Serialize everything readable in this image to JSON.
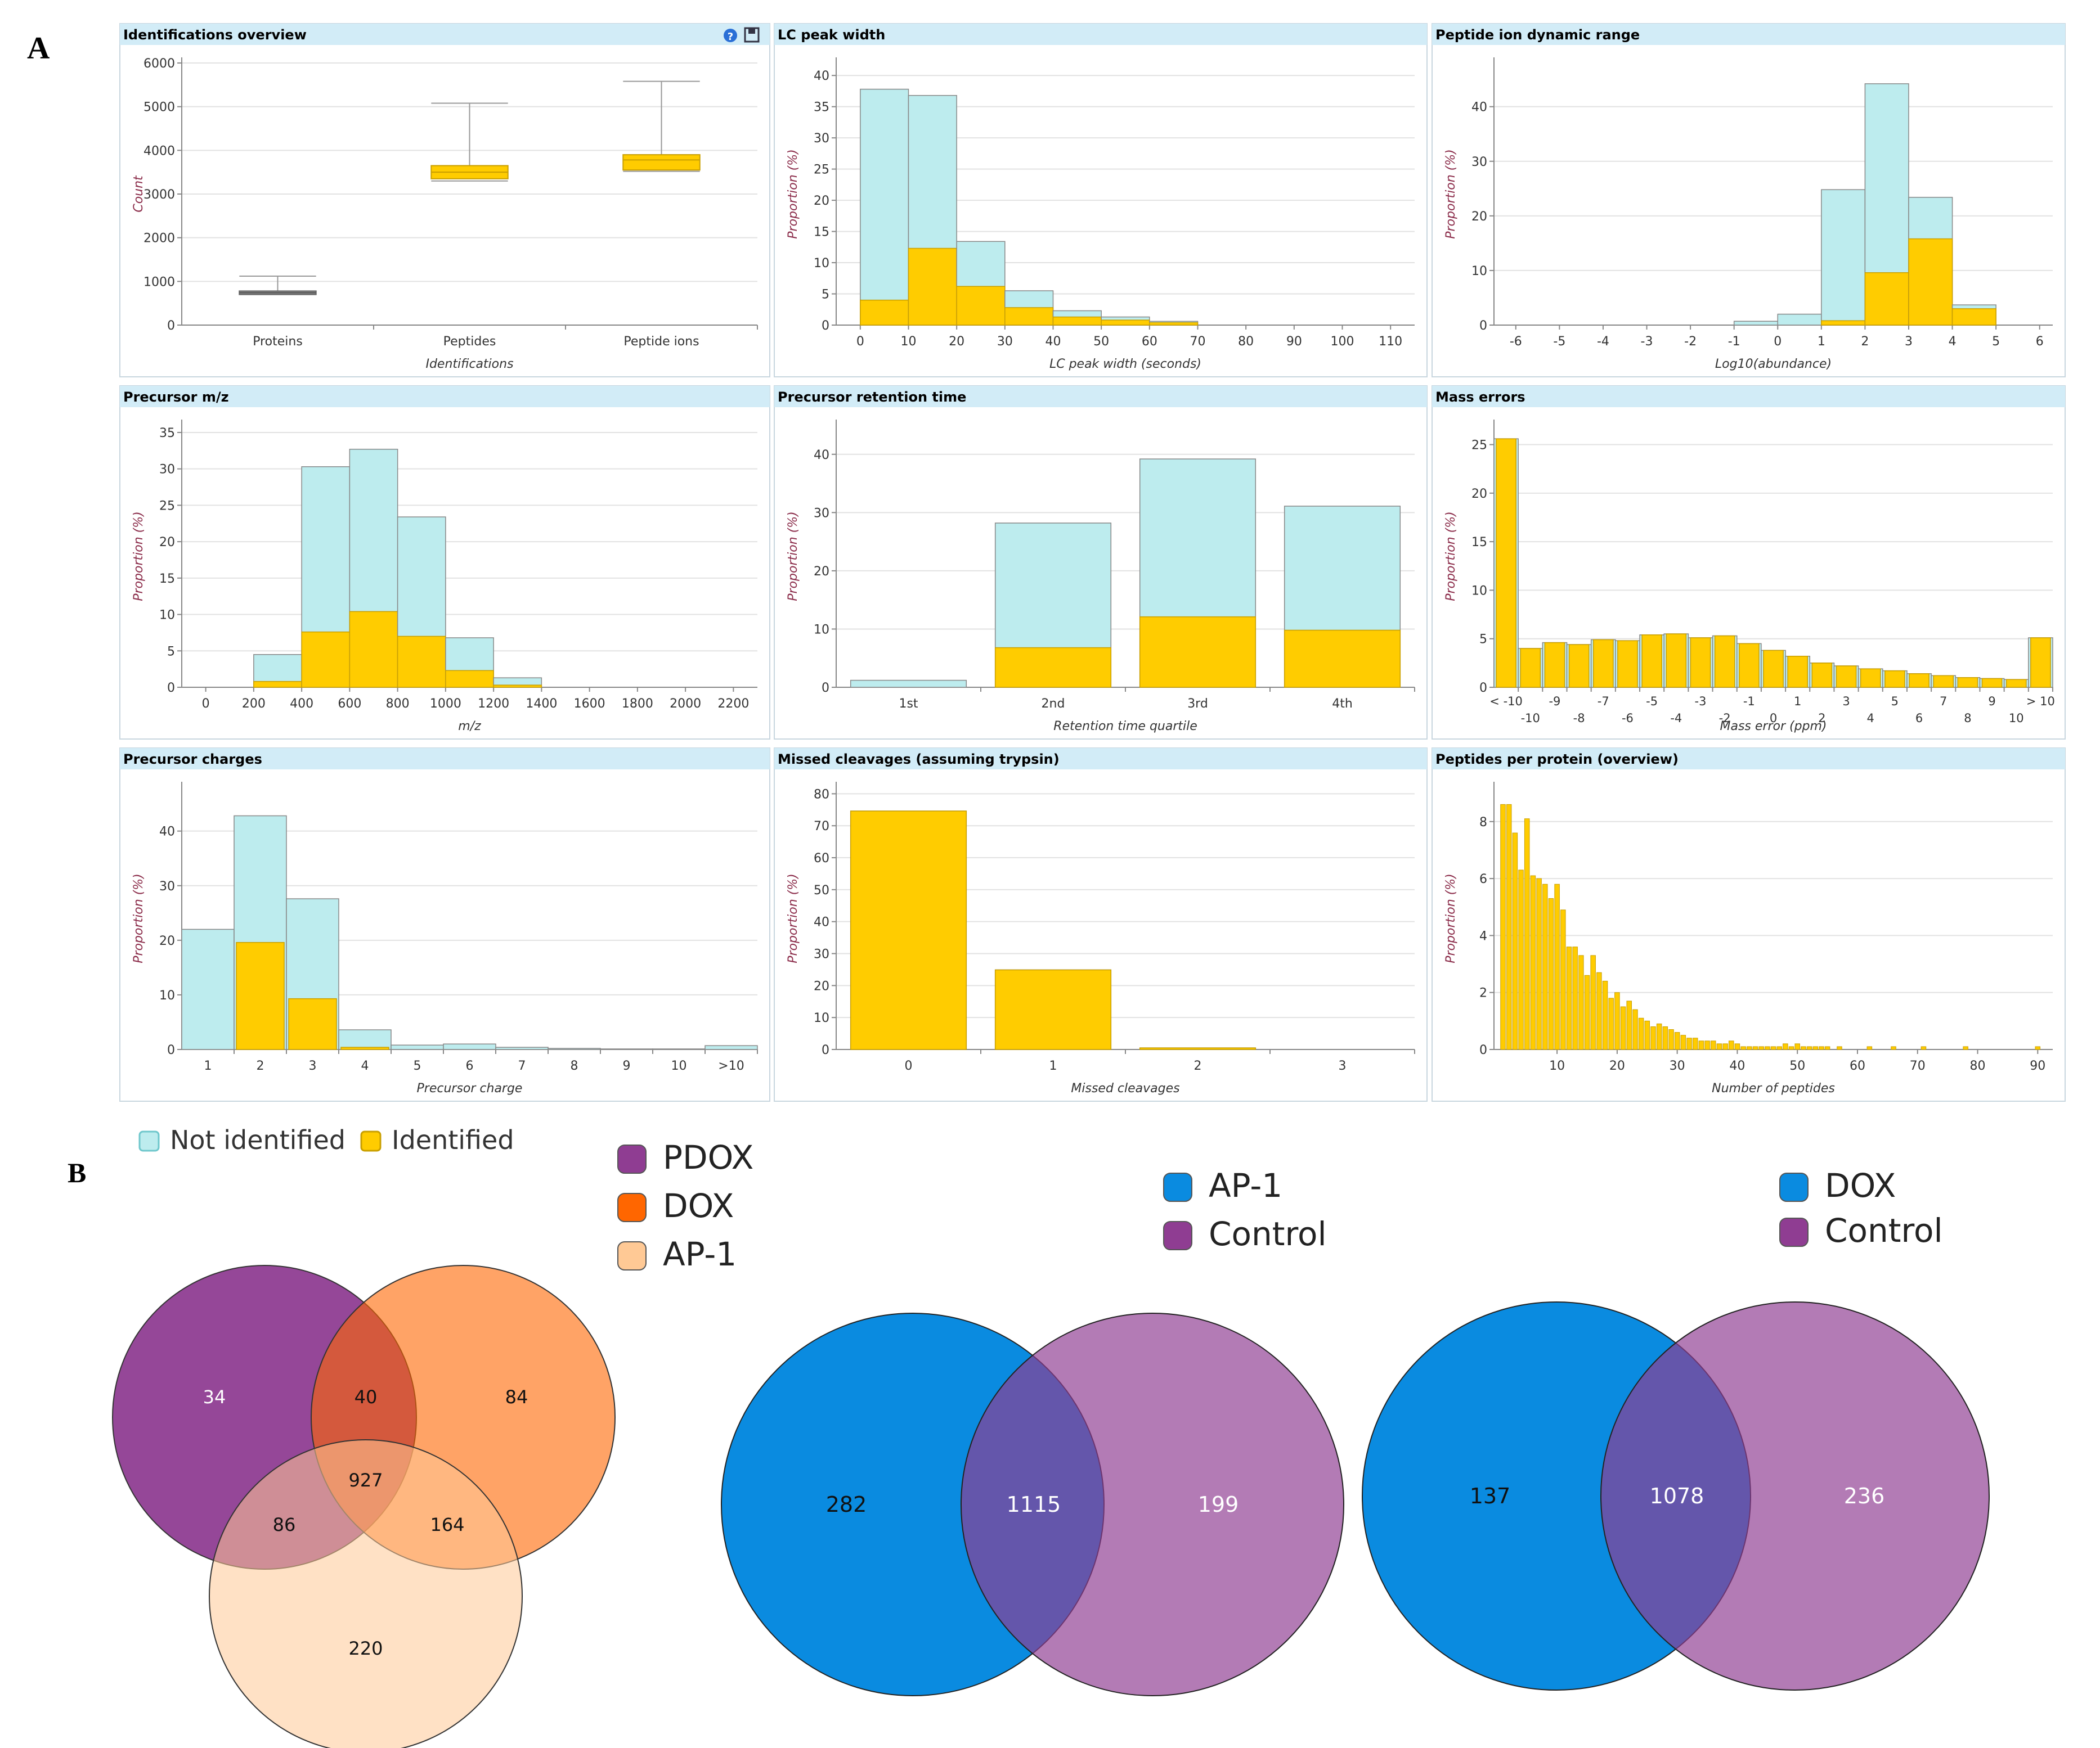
{
  "figure": {
    "label_a": "A",
    "label_b": "B"
  },
  "panel_a": {
    "legend": {
      "not_identified": "Not identified",
      "identified": "Identified"
    },
    "colors": {
      "not_identified": "#bdecee",
      "identified": "#ffcc00",
      "header": "#d2ecf7",
      "header_text": "#000000",
      "grid": "#e2e2e2"
    },
    "charts": [
      {
        "id": "identifications",
        "type": "boxplot",
        "title": "Identifications overview",
        "has_help_icons": true,
        "help_icon": "help-icon",
        "export_icon": "export-icon",
        "categories": [
          "Proteins",
          "Peptides",
          "Peptide ions"
        ],
        "boxes": [
          {
            "min": 700,
            "q1": 700,
            "median": 740,
            "q3": 780,
            "max": 1120
          },
          {
            "min": 3300,
            "q1": 3350,
            "median": 3500,
            "q3": 3650,
            "max": 5080
          },
          {
            "min": 3520,
            "q1": 3550,
            "median": 3780,
            "q3": 3900,
            "max": 5580
          }
        ],
        "xlabel": "Identifications",
        "ylabel": "Count",
        "ylim": [
          0,
          6000
        ],
        "yticks": [
          0,
          1000,
          2000,
          3000,
          4000,
          5000,
          6000
        ]
      },
      {
        "id": "lc-peak-width",
        "type": "histogram",
        "title": "LC peak width",
        "xlabel": "LC peak width (seconds)",
        "ylabel": "Proportion (%)",
        "xlim": [
          -5,
          115
        ],
        "xticks": [
          0,
          10,
          20,
          30,
          40,
          50,
          60,
          70,
          80,
          90,
          100,
          110
        ],
        "ylim": [
          0,
          42
        ],
        "yticks": [
          0,
          5,
          10,
          15,
          20,
          25,
          30,
          35,
          40
        ],
        "bins": [
          {
            "x0": 0,
            "x1": 10,
            "not_identified": 37.8,
            "identified": 4
          },
          {
            "x0": 10,
            "x1": 20,
            "not_identified": 36.8,
            "identified": 12.3
          },
          {
            "x0": 20,
            "x1": 30,
            "not_identified": 13.4,
            "identified": 6.2
          },
          {
            "x0": 30,
            "x1": 40,
            "not_identified": 5.5,
            "identified": 2.8
          },
          {
            "x0": 40,
            "x1": 50,
            "not_identified": 2.3,
            "identified": 1.3
          },
          {
            "x0": 50,
            "x1": 60,
            "not_identified": 1.3,
            "identified": 0.8
          },
          {
            "x0": 60,
            "x1": 70,
            "not_identified": 0.6,
            "identified": 0.4
          }
        ]
      },
      {
        "id": "dynamic-range",
        "type": "histogram",
        "title": "Peptide ion dynamic range",
        "xlabel": "Log10(abundance)",
        "ylabel": "Proportion (%)",
        "xlim": [
          -6.5,
          6.3
        ],
        "xticks": [
          -6,
          -5,
          -4,
          -3,
          -2,
          -1,
          0,
          1,
          2,
          3,
          4,
          5,
          6
        ],
        "ylim": [
          0,
          48
        ],
        "yticks": [
          0,
          10,
          20,
          30,
          40
        ],
        "bins": [
          {
            "x0": -1,
            "x1": 0,
            "not_identified": 0.7,
            "identified": 0
          },
          {
            "x0": 0,
            "x1": 1,
            "not_identified": 2.0,
            "identified": 0
          },
          {
            "x0": 1,
            "x1": 2,
            "not_identified": 24.8,
            "identified": 0.8
          },
          {
            "x0": 2,
            "x1": 3,
            "not_identified": 44.2,
            "identified": 9.6
          },
          {
            "x0": 3,
            "x1": 4,
            "not_identified": 23.4,
            "identified": 15.8
          },
          {
            "x0": 4,
            "x1": 5,
            "not_identified": 3.7,
            "identified": 3.0
          }
        ]
      },
      {
        "id": "precursor-mz",
        "type": "histogram",
        "title": "Precursor m/z",
        "xlabel": "m/z",
        "ylabel": "Proportion (%)",
        "xlim": [
          -100,
          2300
        ],
        "xticks": [
          0,
          200,
          400,
          600,
          800,
          1000,
          1200,
          1400,
          1600,
          1800,
          2000,
          2200
        ],
        "ylim": [
          0,
          36
        ],
        "yticks": [
          0,
          5,
          10,
          15,
          20,
          25,
          30,
          35
        ],
        "bins": [
          {
            "x0": 200,
            "x1": 400,
            "not_identified": 4.5,
            "identified": 0.8
          },
          {
            "x0": 400,
            "x1": 600,
            "not_identified": 30.3,
            "identified": 7.6
          },
          {
            "x0": 600,
            "x1": 800,
            "not_identified": 32.7,
            "identified": 10.4
          },
          {
            "x0": 800,
            "x1": 1000,
            "not_identified": 23.4,
            "identified": 7.0
          },
          {
            "x0": 1000,
            "x1": 1200,
            "not_identified": 6.8,
            "identified": 2.3
          },
          {
            "x0": 1200,
            "x1": 1400,
            "not_identified": 1.3,
            "identified": 0.3
          }
        ]
      },
      {
        "id": "retention-time",
        "type": "bar",
        "title": "Precursor retention time",
        "xlabel": "Retention time quartile",
        "ylabel": "Proportion (%)",
        "categories": [
          "1st",
          "2nd",
          "3rd",
          "4th"
        ],
        "not_identified": [
          1.2,
          28.2,
          39.2,
          31.1
        ],
        "identified": [
          0,
          6.8,
          12.1,
          9.8
        ],
        "ylim": [
          0,
          45
        ],
        "yticks": [
          0,
          10,
          20,
          30,
          40
        ]
      },
      {
        "id": "mass-errors",
        "type": "bar",
        "title": "Mass errors",
        "xlabel": "Mass error (ppm)",
        "ylabel": "Proportion (%)",
        "categories": [
          "< -10",
          "-10",
          "-9",
          "-8",
          "-7",
          "-6",
          "-5",
          "-4",
          "-3",
          "-2",
          "-1",
          "0",
          "1",
          "2",
          "3",
          "4",
          "5",
          "6",
          "7",
          "8",
          "9",
          "10",
          "> 10"
        ],
        "top_ticks": [
          "< -10",
          "-9",
          "-7",
          "-5",
          "-3",
          "-1",
          "1",
          "3",
          "5",
          "7",
          "9",
          "> 10"
        ],
        "bottom_ticks": [
          "-10",
          "-8",
          "-6",
          "-4",
          "-2",
          "0",
          "2",
          "4",
          "6",
          "8",
          "10"
        ],
        "not_identified": [
          25.6,
          4.0,
          4.6,
          4.4,
          4.9,
          4.8,
          5.4,
          5.5,
          5.1,
          5.3,
          4.5,
          3.8,
          3.2,
          2.5,
          2.2,
          1.9,
          1.7,
          1.4,
          1.2,
          1.0,
          0.9,
          0.8,
          5.1
        ],
        "identified": [
          25.6,
          4.0,
          4.6,
          4.4,
          4.9,
          4.8,
          5.4,
          5.5,
          5.1,
          5.3,
          4.5,
          3.8,
          3.2,
          2.5,
          2.2,
          1.9,
          1.7,
          1.4,
          1.2,
          1.0,
          0.9,
          0.8,
          5.1
        ],
        "ylim": [
          0,
          27
        ],
        "yticks": [
          0,
          5,
          10,
          15,
          20,
          25
        ]
      },
      {
        "id": "charges",
        "type": "bar",
        "title": "Precursor charges",
        "xlabel": "Precursor charge",
        "ylabel": "Proportion (%)",
        "categories": [
          "1",
          "2",
          "3",
          "4",
          "5",
          "6",
          "7",
          "8",
          "9",
          "10",
          ">10"
        ],
        "not_identified": [
          22.0,
          42.8,
          27.6,
          3.6,
          0.8,
          1.0,
          0.4,
          0.2,
          0.1,
          0.1,
          0.7
        ],
        "identified": [
          0,
          19.6,
          9.3,
          0.4,
          0,
          0,
          0,
          0,
          0,
          0,
          0
        ],
        "ylim": [
          0,
          48
        ],
        "yticks": [
          0,
          10,
          20,
          30,
          40
        ]
      },
      {
        "id": "missed-cleavages",
        "type": "bar",
        "title": "Missed cleavages (assuming trypsin)",
        "xlabel": "Missed cleavages",
        "ylabel": "Proportion (%)",
        "categories": [
          "0",
          "1",
          "2",
          "3"
        ],
        "not_identified": [
          74.6,
          24.9,
          0.5,
          0
        ],
        "identified": [
          74.6,
          24.9,
          0.5,
          0
        ],
        "ylim": [
          0,
          82
        ],
        "yticks": [
          0,
          10,
          20,
          30,
          40,
          50,
          60,
          70,
          80
        ]
      },
      {
        "id": "peptides-per-protein",
        "type": "histogram",
        "title": "Peptides per protein (overview)",
        "xlabel": "Number of peptides",
        "ylabel": "Proportion (%)",
        "xlim": [
          -0.5,
          92.5
        ],
        "xticks": [
          10,
          20,
          30,
          40,
          50,
          60,
          70,
          80,
          90
        ],
        "ylim": [
          0,
          9.2
        ],
        "yticks": [
          0,
          2,
          4,
          6,
          8
        ],
        "values": [
          8.6,
          8.6,
          7.6,
          6.3,
          8.1,
          6.1,
          6.0,
          5.8,
          5.3,
          5.8,
          4.9,
          3.6,
          3.6,
          3.3,
          2.6,
          3.3,
          2.7,
          2.4,
          1.8,
          2.0,
          1.5,
          1.7,
          1.4,
          1.1,
          1.0,
          0.8,
          0.9,
          0.8,
          0.7,
          0.6,
          0.5,
          0.4,
          0.4,
          0.3,
          0.3,
          0.3,
          0.2,
          0.2,
          0.3,
          0.2,
          0.1,
          0.1,
          0.1,
          0.1,
          0.1,
          0.1,
          0.1,
          0.2,
          0.1,
          0.2,
          0.1,
          0.1,
          0.1,
          0.1,
          0.1,
          0,
          0.1,
          0,
          0,
          0,
          0,
          0.1,
          0,
          0,
          0,
          0.1,
          0,
          0,
          0,
          0,
          0.1,
          0,
          0,
          0,
          0,
          0,
          0,
          0.1,
          0,
          0,
          0,
          0,
          0,
          0,
          0,
          0,
          0,
          0,
          0,
          0.1
        ]
      }
    ]
  },
  "panel_b": {
    "legends": [
      {
        "items": [
          {
            "label": "PDOX",
            "color": "#8f3d92"
          },
          {
            "label": "DOX",
            "color": "#ff6600"
          },
          {
            "label": "AP-1",
            "color": "#ffc995"
          }
        ]
      },
      {
        "items": [
          {
            "label": "AP-1",
            "color": "#0a8be0"
          },
          {
            "label": "Control",
            "color": "#8f3d92"
          }
        ]
      },
      {
        "items": [
          {
            "label": "DOX",
            "color": "#0a8be0"
          },
          {
            "label": "Control",
            "color": "#8f3d92"
          }
        ]
      }
    ],
    "venn3": {
      "pdox_only": 34,
      "pdox_dox": 40,
      "dox_only": 84,
      "all_three": 927,
      "pdox_ap1": 86,
      "dox_ap1": 164,
      "ap1_only": 220
    },
    "venn_ap1_control": {
      "ap1_only": 282,
      "both": 1115,
      "control_only": 199
    },
    "venn_dox_control": {
      "dox_only": 137,
      "both": 1078,
      "control_only": 236
    }
  }
}
